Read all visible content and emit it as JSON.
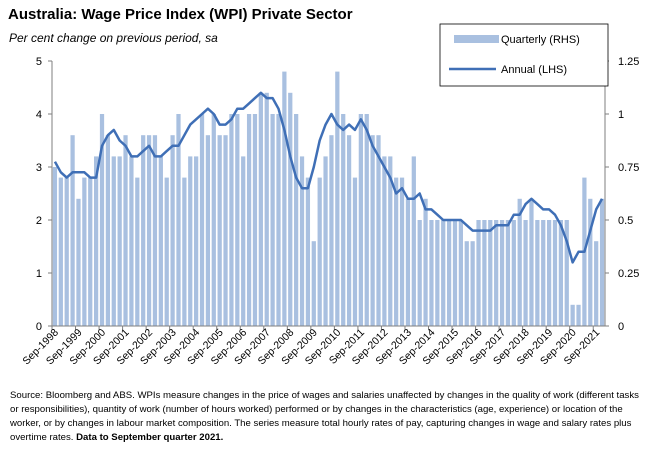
{
  "title": "Australia: Wage Price Index (WPI) Private Sector",
  "subtitle": "Per cent change on previous period, sa",
  "source_text": "Source: Bloomberg and ABS.  WPIs measure changes in the price of wages and salaries unaffected by changes in the quality of work (different tasks or responsibilities), quantity of work (number of hours worked) performed or by changes in the characteristics (age, experience) or location of the worker, or by changes in labour market composition.  The series measure total hourly rates of pay, capturing changes in wage and salary rates plus overtime rates.",
  "source_bold": "Data to September quarter  2021.",
  "colors": {
    "bars": "#a9c0e0",
    "line": "#3f6fb6",
    "axis": "#7f7f7f"
  },
  "chart_data": {
    "type": "bar+line",
    "title": "Australia: Wage Price Index (WPI) Private Sector",
    "subtitle": "Per cent change on previous period, sa",
    "legend": [
      "Quarterly (RHS)",
      "Annual (LHS)"
    ],
    "legend_position": "top-right",
    "left_axis": {
      "ylim": [
        0,
        5
      ],
      "ticks": [
        "0",
        "1",
        "2",
        "3",
        "4",
        "5"
      ]
    },
    "right_axis": {
      "ylim": [
        0,
        1.25
      ],
      "ticks": [
        "0",
        "0.25",
        "0.5",
        "0.75",
        "1",
        "1.25"
      ]
    },
    "x_tick_labels": [
      "Sep-1998",
      "Sep-1999",
      "Sep-2000",
      "Sep-2001",
      "Sep-2002",
      "Sep-2003",
      "Sep-2004",
      "Sep-2005",
      "Sep-2006",
      "Sep-2007",
      "Sep-2008",
      "Sep-2009",
      "Sep-2010",
      "Sep-2011",
      "Sep-2012",
      "Sep-2013",
      "Sep-2014",
      "Sep-2015",
      "Sep-2016",
      "Sep-2017",
      "Sep-2018",
      "Sep-2019",
      "Sep-2020",
      "Sep-2021"
    ],
    "quarters_start": "Sep-1998",
    "quarters_end": "Sep-2021",
    "series": [
      {
        "name": "Quarterly (RHS)",
        "axis": "right",
        "type": "bar",
        "values": [
          0.75,
          0.7,
          0.7,
          0.9,
          0.6,
          0.7,
          0.7,
          0.8,
          1.0,
          0.9,
          0.8,
          0.8,
          0.9,
          0.8,
          0.7,
          0.9,
          0.9,
          0.9,
          0.8,
          0.7,
          0.9,
          1.0,
          0.7,
          0.8,
          0.8,
          1.0,
          0.9,
          1.0,
          0.9,
          0.9,
          1.0,
          1.0,
          0.8,
          1.0,
          1.0,
          1.1,
          1.1,
          1.0,
          1.0,
          1.2,
          1.1,
          1.0,
          0.8,
          0.7,
          0.4,
          0.7,
          0.8,
          0.9,
          1.2,
          1.0,
          0.9,
          0.7,
          1.0,
          1.0,
          0.9,
          0.9,
          0.8,
          0.8,
          0.7,
          0.7,
          0.6,
          0.8,
          0.5,
          0.6,
          0.5,
          0.5,
          0.5,
          0.5,
          0.5,
          0.5,
          0.4,
          0.4,
          0.5,
          0.5,
          0.5,
          0.5,
          0.5,
          0.5,
          0.5,
          0.6,
          0.5,
          0.6,
          0.5,
          0.5,
          0.5,
          0.5,
          0.5,
          0.5,
          0.1,
          0.1,
          0.7,
          0.6,
          0.4,
          0.6
        ]
      },
      {
        "name": "Annual (LHS)",
        "axis": "left",
        "type": "line",
        "values": [
          3.1,
          2.9,
          2.8,
          2.9,
          2.9,
          2.9,
          2.8,
          2.8,
          3.4,
          3.6,
          3.7,
          3.5,
          3.4,
          3.2,
          3.2,
          3.3,
          3.4,
          3.2,
          3.2,
          3.3,
          3.4,
          3.4,
          3.6,
          3.8,
          3.9,
          4.0,
          4.1,
          4.0,
          3.8,
          3.8,
          3.9,
          4.1,
          4.1,
          4.2,
          4.3,
          4.4,
          4.3,
          4.3,
          4.1,
          3.7,
          3.2,
          2.8,
          2.6,
          2.6,
          3.0,
          3.5,
          3.8,
          4.0,
          3.8,
          3.7,
          3.8,
          3.7,
          3.9,
          3.7,
          3.4,
          3.2,
          3.0,
          2.8,
          2.5,
          2.6,
          2.4,
          2.4,
          2.5,
          2.2,
          2.2,
          2.1,
          2.0,
          2.0,
          2.0,
          2.0,
          1.9,
          1.8,
          1.8,
          1.8,
          1.8,
          1.9,
          1.9,
          1.9,
          2.1,
          2.1,
          2.3,
          2.4,
          2.3,
          2.2,
          2.2,
          2.1,
          1.9,
          1.6,
          1.2,
          1.4,
          1.4,
          1.8,
          2.2,
          2.4
        ]
      }
    ]
  }
}
